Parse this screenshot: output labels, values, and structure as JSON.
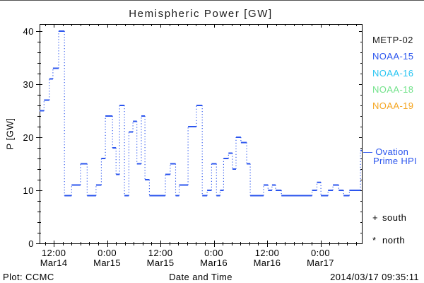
{
  "title": "Hemispheric Power [GW]",
  "axes": {
    "y": {
      "label": "P [GW]",
      "tick_values": [
        0,
        10,
        20,
        30,
        40
      ],
      "minor_step": 2,
      "range": [
        0,
        41.33
      ]
    },
    "x": {
      "label": "Date and Time",
      "range_hours_since_mar14_00": [
        8.8,
        81.3
      ],
      "minor_step_hours": 2,
      "ticks": [
        {
          "hour": 12,
          "time": "12:00",
          "date": "Mar14"
        },
        {
          "hour": 24,
          "time": "0:00",
          "date": "Mar15"
        },
        {
          "hour": 36,
          "time": "12:00",
          "date": "Mar15"
        },
        {
          "hour": 48,
          "time": "0:00",
          "date": "Mar16"
        },
        {
          "hour": 60,
          "time": "12:00",
          "date": "Mar16"
        },
        {
          "hour": 72,
          "time": "0:00",
          "date": "Mar17"
        }
      ]
    }
  },
  "legend": {
    "satellites": [
      {
        "label": "METP-02",
        "color": "#1a1a1a"
      },
      {
        "label": "NOAA-15",
        "color": "#2b55ee"
      },
      {
        "label": "NOAA-16",
        "color": "#29c5f2"
      },
      {
        "label": "NOAA-18",
        "color": "#74e38c"
      },
      {
        "label": "NOAA-19",
        "color": "#f5a623"
      }
    ],
    "model_line": {
      "symbol": "—",
      "line1": "Ovation",
      "line2": "Prime HPI",
      "color": "#2b55ee"
    },
    "hemisphere_markers": [
      {
        "symbol": "+",
        "label": "south"
      },
      {
        "symbol": "*",
        "label": "north"
      }
    ]
  },
  "footer": {
    "left": "Plot: CCMC",
    "right": "2014/03/17 09:35:11"
  },
  "chart_data": {
    "type": "line",
    "subtype": "step-post",
    "title": "Hemispheric Power [GW]",
    "xlabel": "Date and Time",
    "ylabel": "P [GW]",
    "ylim": [
      0,
      41.33
    ],
    "xlim_hours_since_mar14_00": [
      8.8,
      81.3
    ],
    "x_major_ticks_hours": [
      12,
      24,
      36,
      48,
      60,
      72
    ],
    "x_tick_labels": [
      "12:00 Mar14",
      "0:00 Mar15",
      "12:00 Mar15",
      "0:00 Mar16",
      "12:00 Mar16",
      "0:00 Mar17"
    ],
    "grid": false,
    "legend_position": "right",
    "series": [
      {
        "name": "NOAA-15 Ovation Prime HPI",
        "color": "#2b55ee",
        "line_style": "solid level segments with dotted vertical transitions",
        "t_end_hours": 81.3,
        "points_t_hours_value_gw": [
          [
            8.8,
            25
          ],
          [
            9.8,
            27
          ],
          [
            11.0,
            31
          ],
          [
            11.8,
            33
          ],
          [
            13.1,
            40
          ],
          [
            14.4,
            9
          ],
          [
            16.0,
            11
          ],
          [
            18.0,
            15
          ],
          [
            19.5,
            9
          ],
          [
            21.5,
            11
          ],
          [
            22.7,
            16
          ],
          [
            23.6,
            24
          ],
          [
            25.2,
            18
          ],
          [
            26.0,
            13
          ],
          [
            26.8,
            26
          ],
          [
            27.9,
            9
          ],
          [
            28.9,
            21
          ],
          [
            29.8,
            23
          ],
          [
            30.7,
            15
          ],
          [
            31.7,
            24
          ],
          [
            32.5,
            12
          ],
          [
            33.5,
            9
          ],
          [
            37.1,
            13
          ],
          [
            38.2,
            15
          ],
          [
            39.4,
            9
          ],
          [
            40.2,
            11
          ],
          [
            42.2,
            22
          ],
          [
            44.1,
            26
          ],
          [
            45.4,
            9
          ],
          [
            46.5,
            10
          ],
          [
            47.5,
            15
          ],
          [
            48.6,
            9
          ],
          [
            49.4,
            10
          ],
          [
            50.2,
            16
          ],
          [
            51.3,
            17
          ],
          [
            52.2,
            14
          ],
          [
            53.0,
            20
          ],
          [
            54.1,
            19
          ],
          [
            55.4,
            15
          ],
          [
            56.2,
            9
          ],
          [
            59.2,
            11
          ],
          [
            60.2,
            10
          ],
          [
            61.1,
            11
          ],
          [
            61.9,
            10
          ],
          [
            63.2,
            9
          ],
          [
            70.1,
            10
          ],
          [
            71.2,
            11.5
          ],
          [
            72.1,
            9
          ],
          [
            73.7,
            10
          ],
          [
            74.8,
            11
          ],
          [
            76.1,
            10
          ],
          [
            77.2,
            9
          ],
          [
            78.5,
            10
          ],
          [
            81.0,
            17.5
          ]
        ]
      }
    ]
  }
}
